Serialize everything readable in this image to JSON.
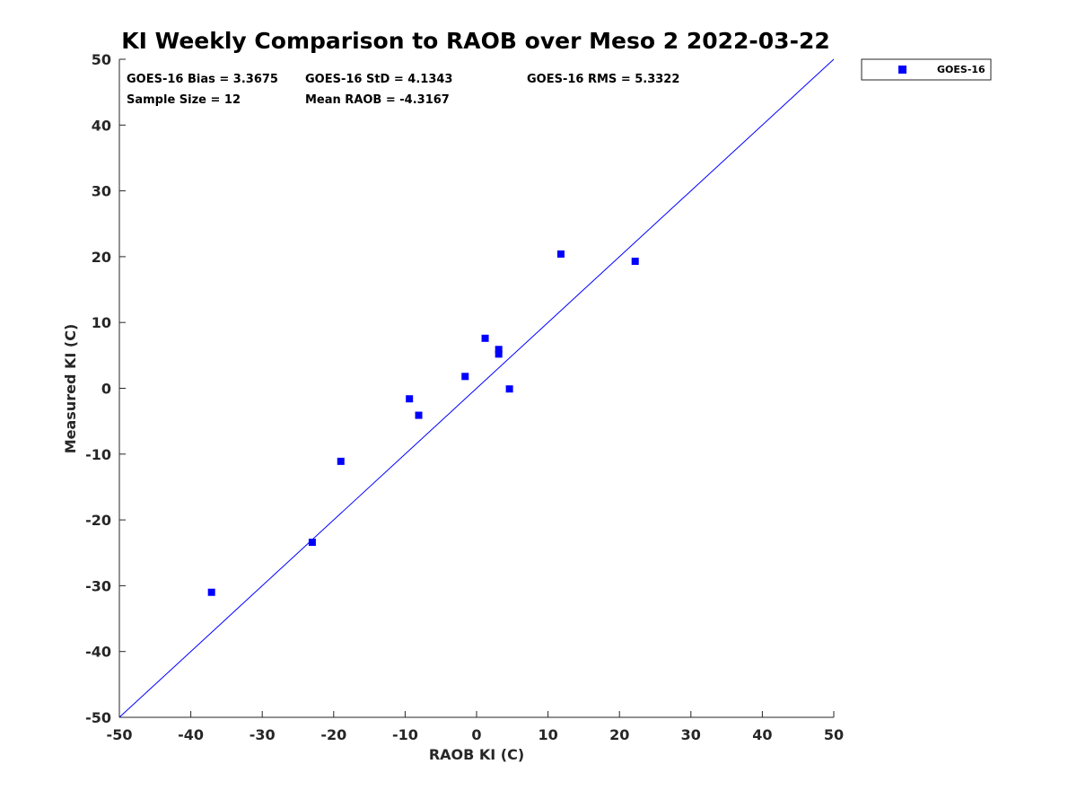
{
  "chart_data": {
    "type": "scatter",
    "title": "KI Weekly Comparison to RAOB over Meso 2 2022-03-22",
    "xlabel": "RAOB KI (C)",
    "ylabel": "Measured KI (C)",
    "xlim": [
      -50,
      50
    ],
    "ylim": [
      -50,
      50
    ],
    "x_ticks": [
      -50,
      -40,
      -30,
      -20,
      -10,
      0,
      10,
      20,
      30,
      40,
      50
    ],
    "y_ticks": [
      -50,
      -40,
      -30,
      -20,
      -10,
      0,
      10,
      20,
      30,
      40,
      50
    ],
    "grid": false,
    "legend_position": "outside-top-right",
    "reference_line": {
      "name": "1:1 line",
      "from": [
        -50,
        -50
      ],
      "to": [
        50,
        50
      ],
      "color": "#0000ff"
    },
    "series": [
      {
        "name": "GOES-16",
        "color": "#0000ff",
        "marker": "square",
        "points": [
          {
            "x": -37.1,
            "y": -31.0
          },
          {
            "x": -23.0,
            "y": -23.4
          },
          {
            "x": -19.0,
            "y": -11.1
          },
          {
            "x": -9.4,
            "y": -1.6
          },
          {
            "x": -8.1,
            "y": -4.1
          },
          {
            "x": -1.6,
            "y": 1.8
          },
          {
            "x": 1.2,
            "y": 7.6
          },
          {
            "x": 3.1,
            "y": 5.9
          },
          {
            "x": 3.1,
            "y": 5.2
          },
          {
            "x": 4.6,
            "y": -0.1
          },
          {
            "x": 11.8,
            "y": 20.4
          },
          {
            "x": 22.2,
            "y": 19.3
          }
        ]
      }
    ],
    "stats": {
      "bias": "GOES-16 Bias = 3.3675",
      "std": "GOES-16 StD = 4.1343",
      "rms": "GOES-16 RMS = 5.3322",
      "sample_size": "Sample Size = 12",
      "mean_raob": "Mean RAOB = -4.3167"
    }
  }
}
